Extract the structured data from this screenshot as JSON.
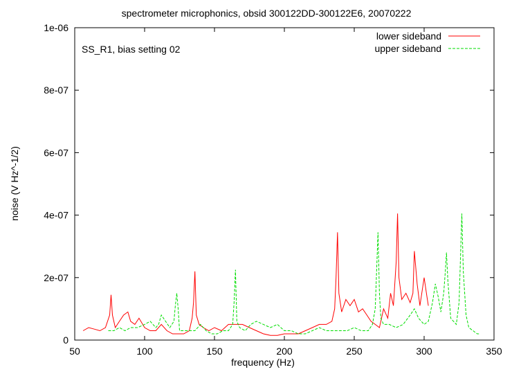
{
  "chart_data": {
    "type": "line",
    "title": "spectrometer microphonics, obsid 300122DD-300122E6, 20070222",
    "annotation": "SS_R1, bias setting 02",
    "xlabel": "frequency (Hz)",
    "ylabel": "noise (V Hz^-1/2)",
    "xlim": [
      50,
      350
    ],
    "ylim": [
      0,
      1e-06
    ],
    "x_ticks": [
      {
        "value": 50,
        "label": "50"
      },
      {
        "value": 100,
        "label": "100"
      },
      {
        "value": 150,
        "label": "150"
      },
      {
        "value": 200,
        "label": "200"
      },
      {
        "value": 250,
        "label": "250"
      },
      {
        "value": 300,
        "label": "300"
      },
      {
        "value": 350,
        "label": "350"
      }
    ],
    "y_ticks": [
      {
        "value": 0,
        "label": "0"
      },
      {
        "value": 2e-07,
        "label": "2e-07"
      },
      {
        "value": 4e-07,
        "label": "4e-07"
      },
      {
        "value": 6e-07,
        "label": "6e-07"
      },
      {
        "value": 8e-07,
        "label": "8e-07"
      },
      {
        "value": 1e-06,
        "label": "1e-06"
      }
    ],
    "grid": false,
    "legend_position": "top-right",
    "series": [
      {
        "name": "lower sideband",
        "color": "#ff0000",
        "dash": "solid",
        "x": [
          56,
          60,
          64,
          68,
          72,
          75,
          76,
          77,
          79,
          82,
          85,
          88,
          90,
          93,
          96,
          100,
          104,
          108,
          112,
          116,
          120,
          124,
          128,
          132,
          134,
          135,
          136,
          137,
          139,
          142,
          146,
          150,
          155,
          160,
          165,
          170,
          175,
          180,
          185,
          190,
          195,
          200,
          205,
          210,
          215,
          220,
          225,
          230,
          234,
          236,
          237,
          238,
          239,
          241,
          244,
          247,
          250,
          253,
          256,
          259,
          262,
          265,
          268,
          271,
          274,
          276,
          278,
          280,
          281,
          282,
          284,
          287,
          290,
          292,
          293,
          295,
          297,
          300,
          302,
          303
        ],
        "y": [
          3e-08,
          4e-08,
          3.5e-08,
          3e-08,
          4e-08,
          8e-08,
          1.45e-07,
          8e-08,
          4e-08,
          6e-08,
          8e-08,
          9e-08,
          6e-08,
          5e-08,
          7e-08,
          4e-08,
          3e-08,
          3e-08,
          5e-08,
          3e-08,
          2e-08,
          2e-08,
          2e-08,
          3e-08,
          7e-08,
          1.2e-07,
          2.2e-07,
          8e-08,
          5e-08,
          4e-08,
          3e-08,
          4e-08,
          3e-08,
          5e-08,
          5e-08,
          5e-08,
          4e-08,
          3e-08,
          2e-08,
          1.5e-08,
          1.5e-08,
          2e-08,
          2e-08,
          2e-08,
          3e-08,
          4e-08,
          5e-08,
          5e-08,
          6e-08,
          1e-07,
          2e-07,
          3.45e-07,
          1.5e-07,
          9e-08,
          1.3e-07,
          1.1e-07,
          1.3e-07,
          9e-08,
          1e-07,
          8e-08,
          6e-08,
          5e-08,
          4e-08,
          1e-07,
          7e-08,
          1.5e-07,
          1.1e-07,
          2.5e-07,
          4.05e-07,
          2e-07,
          1.3e-07,
          1.5e-07,
          1.2e-07,
          1.5e-07,
          2.85e-07,
          1.8e-07,
          1.1e-07,
          2e-07,
          1.4e-07,
          1.1e-07
        ]
      },
      {
        "name": "upper sideband",
        "color": "#00dd00",
        "dash": "dashed",
        "x": [
          74,
          78,
          82,
          86,
          90,
          95,
          100,
          104,
          108,
          110,
          112,
          115,
          118,
          121,
          122,
          123,
          124,
          125,
          128,
          132,
          136,
          140,
          144,
          148,
          152,
          156,
          160,
          163,
          164,
          165,
          166,
          168,
          172,
          176,
          180,
          185,
          190,
          195,
          200,
          205,
          210,
          215,
          220,
          225,
          230,
          235,
          240,
          245,
          250,
          255,
          260,
          263,
          265,
          266,
          267,
          268,
          269,
          271,
          275,
          280,
          285,
          290,
          293,
          296,
          300,
          303,
          306,
          308,
          310,
          312,
          314,
          315,
          316,
          317,
          319,
          321,
          323,
          325,
          326,
          327,
          328,
          330,
          332,
          335,
          338,
          340
        ],
        "y": [
          3e-08,
          3e-08,
          4e-08,
          3e-08,
          4e-08,
          4e-08,
          5e-08,
          6e-08,
          4e-08,
          5e-08,
          8e-08,
          6e-08,
          4e-08,
          6e-08,
          1.1e-07,
          1.5e-07,
          1e-07,
          3e-08,
          3e-08,
          3e-08,
          3e-08,
          5e-08,
          3e-08,
          2e-08,
          2e-08,
          3e-08,
          3e-08,
          5e-08,
          1.2e-07,
          2.25e-07,
          6e-08,
          4e-08,
          3e-08,
          5e-08,
          6e-08,
          5e-08,
          4e-08,
          5e-08,
          3e-08,
          3e-08,
          2e-08,
          2e-08,
          3e-08,
          4e-08,
          3e-08,
          3e-08,
          3e-08,
          3e-08,
          4e-08,
          3e-08,
          3e-08,
          5e-08,
          1e-07,
          2.2e-07,
          3.45e-07,
          1.5e-07,
          7e-08,
          5e-08,
          5e-08,
          4e-08,
          5e-08,
          8e-08,
          1e-07,
          7e-08,
          5e-08,
          6e-08,
          1.2e-07,
          1.8e-07,
          1.4e-07,
          9e-08,
          1.5e-07,
          2.1e-07,
          2.8e-07,
          1.9e-07,
          7e-08,
          6e-08,
          5e-08,
          1.2e-07,
          2.6e-07,
          4.05e-07,
          2.2e-07,
          8e-08,
          4e-08,
          3e-08,
          2e-08,
          2e-08
        ]
      }
    ]
  }
}
